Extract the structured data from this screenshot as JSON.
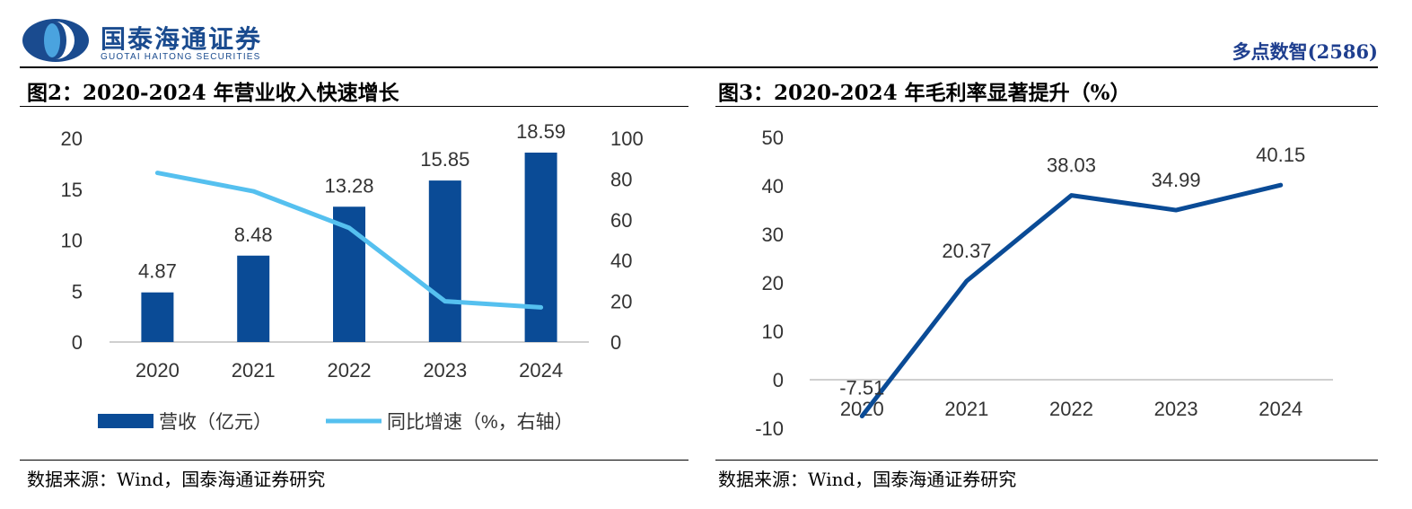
{
  "header": {
    "brand_name_cn": "国泰海通证券",
    "brand_name_en": "GUOTAI HAITONG SECURITIES",
    "report_tag": "多点数智(2586)",
    "brand_color": "#1a4b8f"
  },
  "figures": [
    {
      "title": "图2：2020-2024 年营业收入快速增长",
      "source": "数据来源：Wind，国泰海通证券研究",
      "legend": [
        "营收（亿元）",
        "同比增速（%，右轴）"
      ]
    },
    {
      "title": "图3：2020-2024 年毛利率显著提升（%）",
      "source": "数据来源：Wind，国泰海通证券研究"
    }
  ],
  "chart_data": [
    {
      "type": "bar+line",
      "categories": [
        "2020",
        "2021",
        "2022",
        "2023",
        "2024"
      ],
      "series": [
        {
          "name": "营收（亿元）",
          "type": "bar",
          "axis": "left",
          "values": [
            4.87,
            8.48,
            13.28,
            15.85,
            18.59
          ],
          "color": "#0a4b96"
        },
        {
          "name": "同比增速（%，右轴）",
          "type": "line",
          "axis": "right",
          "values": [
            83,
            74,
            56,
            20,
            17
          ],
          "color": "#55c0ef"
        }
      ],
      "data_labels": [
        "4.87",
        "8.48",
        "13.28",
        "15.85",
        "18.59"
      ],
      "ylim": [
        0,
        20
      ],
      "yticks": [
        0,
        5,
        10,
        15,
        20
      ],
      "y2lim": [
        0,
        100
      ],
      "y2ticks": [
        0,
        20,
        40,
        60,
        80,
        100
      ],
      "grid": false,
      "legend_position": "bottom"
    },
    {
      "type": "line",
      "categories": [
        "2020",
        "2021",
        "2022",
        "2023",
        "2024"
      ],
      "series": [
        {
          "values": [
            -7.51,
            20.37,
            38.03,
            34.99,
            40.15
          ],
          "color": "#0a4b96"
        }
      ],
      "data_labels": [
        "-7.51",
        "20.37",
        "38.03",
        "34.99",
        "40.15"
      ],
      "ylim": [
        -10,
        50
      ],
      "yticks": [
        -10,
        0,
        10,
        20,
        30,
        40,
        50
      ],
      "grid": false
    }
  ]
}
